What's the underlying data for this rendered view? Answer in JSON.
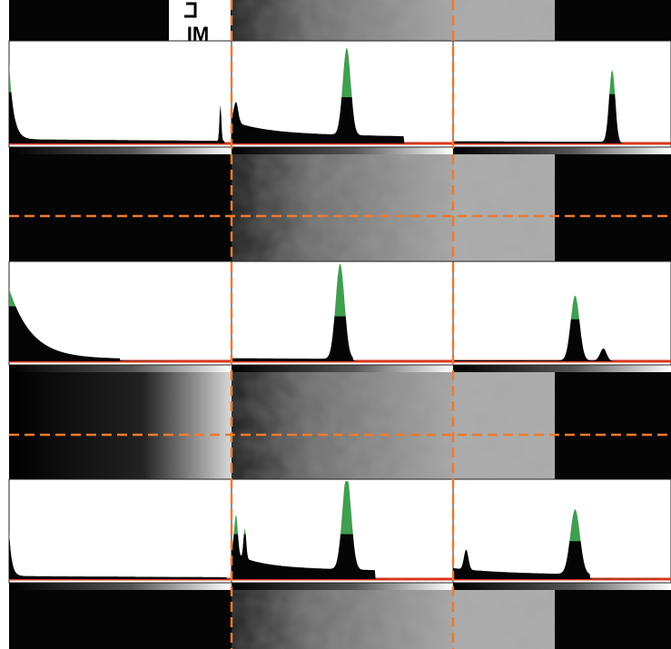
{
  "tile_text": "IM"
}
